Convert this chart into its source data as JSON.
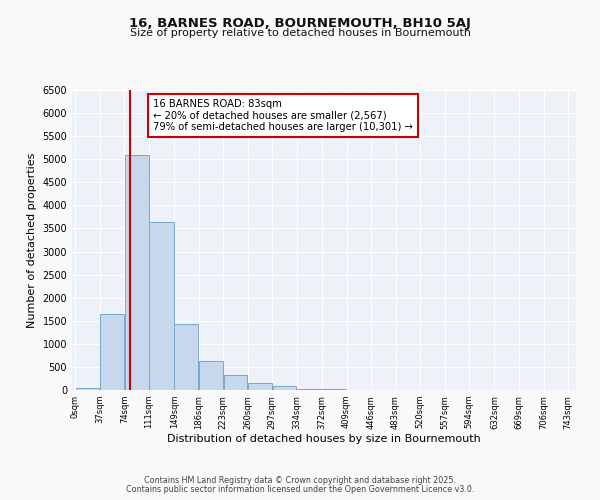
{
  "title": "16, BARNES ROAD, BOURNEMOUTH, BH10 5AJ",
  "subtitle": "Size of property relative to detached houses in Bournemouth",
  "xlabel": "Distribution of detached houses by size in Bournemouth",
  "ylabel": "Number of detached properties",
  "bar_color": "#c8d8ec",
  "bar_edge_color": "#7ba7cc",
  "bg_color": "#edf2f9",
  "grid_color": "#ffffff",
  "vline_x": 83,
  "vline_color": "#cc0000",
  "annotation_box_color": "#cc0000",
  "annotation_line1": "16 BARNES ROAD: 83sqm",
  "annotation_line2": "← 20% of detached houses are smaller (2,567)",
  "annotation_line3": "79% of semi-detached houses are larger (10,301) →",
  "bin_edges": [
    0,
    37,
    74,
    111,
    149,
    186,
    223,
    260,
    297,
    334,
    372,
    409,
    446,
    483,
    520,
    557,
    594,
    632,
    669,
    706,
    743
  ],
  "bar_heights": [
    50,
    1650,
    5100,
    3650,
    1430,
    620,
    320,
    155,
    80,
    30,
    15,
    5,
    0,
    0,
    0,
    0,
    0,
    0,
    0,
    0
  ],
  "ylim": [
    0,
    6500
  ],
  "yticks": [
    0,
    500,
    1000,
    1500,
    2000,
    2500,
    3000,
    3500,
    4000,
    4500,
    5000,
    5500,
    6000,
    6500
  ],
  "fig_bg_color": "#f9f9f9",
  "footer1": "Contains HM Land Registry data © Crown copyright and database right 2025.",
  "footer2": "Contains public sector information licensed under the Open Government Licence v3.0."
}
